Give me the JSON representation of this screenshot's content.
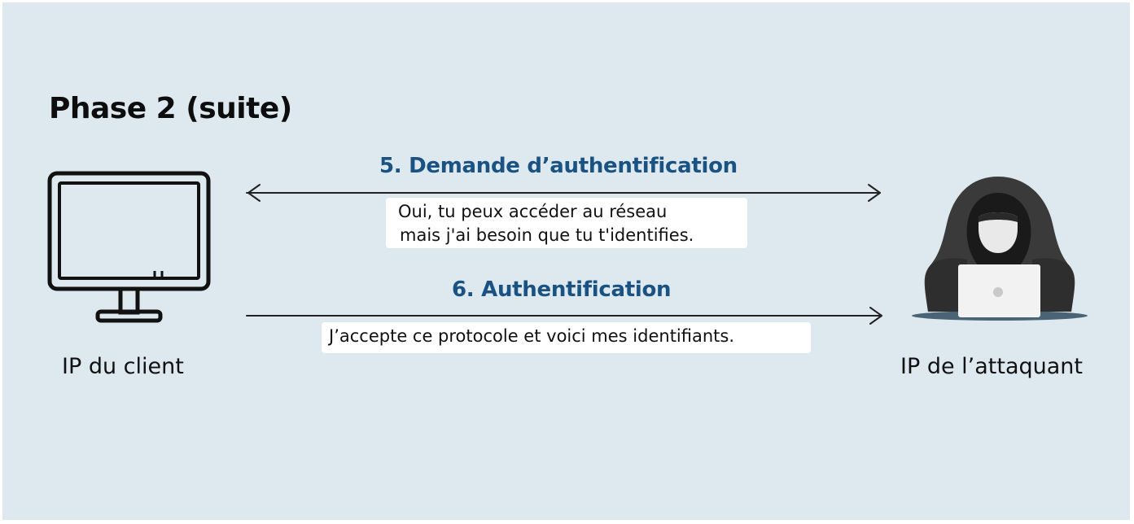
{
  "title": "Phase 2 (suite)",
  "steps": [
    {
      "title": "5. Demande d’authentification",
      "message_lines": [
        "Oui, tu peux accéder au réseau",
        "mais j'ai besoin que tu t'identifies."
      ],
      "direction": "bidirectional"
    },
    {
      "title": "6. Authentification",
      "message_lines": [
        "J’accepte ce protocole et voici mes identifiants."
      ],
      "direction": "client-to-attacker"
    }
  ],
  "nodes": {
    "client": {
      "label": "IP du client",
      "icon": "monitor-icon"
    },
    "attacker": {
      "label": "IP de l’attaquant",
      "icon": "hooded-hacker-icon"
    }
  },
  "colors": {
    "background": "#dde8ef",
    "step_title": "#1a5282",
    "text": "#111111"
  }
}
